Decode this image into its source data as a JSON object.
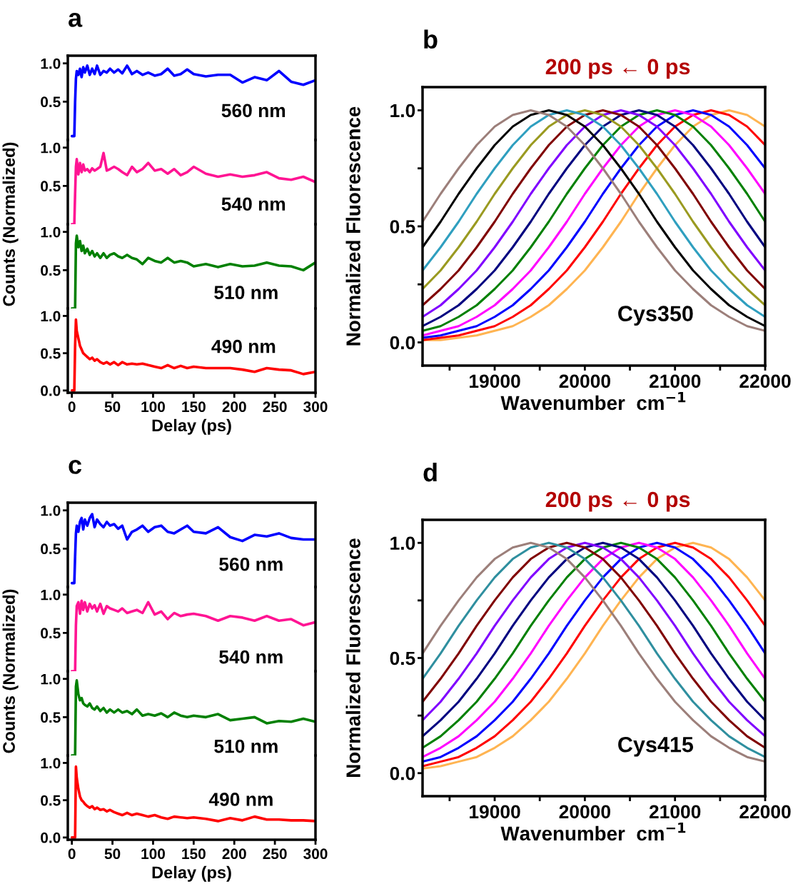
{
  "chart_data": [
    {
      "type": "line",
      "title": "a",
      "x": [
        0,
        3,
        4,
        5,
        6,
        8,
        10,
        12,
        14,
        16,
        19,
        22,
        25,
        28,
        31,
        35,
        39,
        43,
        47,
        52,
        57,
        62,
        68,
        74,
        80,
        87,
        94,
        102,
        110,
        118,
        126,
        134,
        142,
        150,
        165,
        180,
        195,
        210,
        225,
        240,
        255,
        270,
        285,
        300
      ],
      "series": [
        {
          "name": "560 nm",
          "color": "#0000ff",
          "values": [
            0.05,
            0.05,
            0.5,
            0.8,
            0.9,
            0.85,
            0.93,
            0.82,
            0.95,
            0.88,
            0.97,
            0.85,
            0.93,
            0.86,
            0.97,
            0.85,
            0.9,
            0.88,
            0.93,
            0.88,
            0.92,
            0.87,
            0.97,
            0.86,
            0.9,
            0.85,
            0.88,
            0.84,
            0.86,
            0.93,
            0.84,
            0.86,
            0.92,
            0.86,
            0.83,
            0.85,
            0.85,
            0.75,
            0.82,
            0.78,
            0.9,
            0.76,
            0.72,
            0.78
          ]
        }
      ],
      "xlim": [
        -5,
        300
      ],
      "ylim": [
        0,
        1.1
      ],
      "yticks": [
        {
          "value": 0.5,
          "label": "0.5"
        },
        {
          "value": 1,
          "label": "1.0"
        }
      ],
      "tick_labels": "y"
    },
    {
      "type": "line",
      "ylabel": "Counts (Normalized)",
      "x": [
        0,
        3,
        4,
        5,
        6,
        8,
        10,
        12,
        14,
        16,
        19,
        22,
        25,
        28,
        31,
        35,
        39,
        43,
        47,
        52,
        57,
        62,
        68,
        74,
        80,
        87,
        94,
        102,
        110,
        118,
        126,
        134,
        142,
        150,
        165,
        180,
        195,
        210,
        225,
        240,
        255,
        270,
        285,
        300
      ],
      "series": [
        {
          "name": "540 nm",
          "color": "#ff1493",
          "values": [
            0.0,
            0.0,
            0.4,
            0.75,
            0.85,
            0.65,
            0.8,
            0.68,
            0.78,
            0.7,
            0.72,
            0.68,
            0.73,
            0.7,
            0.72,
            0.75,
            0.93,
            0.7,
            0.72,
            0.75,
            0.72,
            0.68,
            0.64,
            0.75,
            0.68,
            0.72,
            0.8,
            0.7,
            0.72,
            0.66,
            0.72,
            0.64,
            0.68,
            0.75,
            0.66,
            0.62,
            0.65,
            0.62,
            0.64,
            0.68,
            0.6,
            0.58,
            0.62,
            0.55
          ]
        }
      ],
      "xlim": [
        -5,
        300
      ],
      "ylim": [
        0,
        1.1
      ],
      "yticks": [
        {
          "value": 0.5,
          "label": "0.5"
        },
        {
          "value": 1,
          "label": "1.0"
        }
      ],
      "tick_labels": "y"
    },
    {
      "type": "line",
      "x": [
        0,
        3,
        4,
        5,
        6,
        8,
        10,
        12,
        14,
        16,
        19,
        22,
        25,
        28,
        31,
        35,
        39,
        43,
        47,
        52,
        57,
        62,
        68,
        74,
        80,
        87,
        94,
        102,
        110,
        118,
        126,
        134,
        142,
        150,
        165,
        180,
        195,
        210,
        225,
        240,
        255,
        270,
        285,
        300
      ],
      "series": [
        {
          "name": "510 nm",
          "color": "#008000",
          "values": [
            0.0,
            0.0,
            0.0,
            0.85,
            0.95,
            0.8,
            0.88,
            0.75,
            0.82,
            0.72,
            0.78,
            0.7,
            0.75,
            0.68,
            0.72,
            0.66,
            0.72,
            0.66,
            0.7,
            0.72,
            0.68,
            0.66,
            0.7,
            0.66,
            0.64,
            0.58,
            0.66,
            0.62,
            0.6,
            0.66,
            0.6,
            0.62,
            0.6,
            0.55,
            0.58,
            0.54,
            0.58,
            0.55,
            0.56,
            0.6,
            0.56,
            0.55,
            0.5,
            0.6
          ]
        }
      ],
      "xlim": [
        -5,
        300
      ],
      "ylim": [
        0,
        1.1
      ],
      "yticks": [
        {
          "value": 0.5,
          "label": "0.5"
        },
        {
          "value": 1,
          "label": "1.0"
        }
      ],
      "tick_labels": "y"
    },
    {
      "type": "line",
      "xlabel": "Delay (ps)",
      "x": [
        0,
        3,
        4,
        5,
        6,
        8,
        10,
        12,
        14,
        16,
        19,
        22,
        25,
        28,
        31,
        35,
        39,
        43,
        47,
        52,
        57,
        62,
        68,
        74,
        80,
        87,
        94,
        102,
        110,
        118,
        126,
        134,
        142,
        150,
        165,
        180,
        195,
        210,
        225,
        240,
        255,
        270,
        285,
        300
      ],
      "series": [
        {
          "name": "490 nm",
          "color": "#ff0000",
          "values": [
            0.0,
            0.0,
            0.6,
            0.95,
            0.8,
            0.7,
            0.6,
            0.55,
            0.5,
            0.48,
            0.45,
            0.42,
            0.44,
            0.4,
            0.42,
            0.38,
            0.36,
            0.38,
            0.35,
            0.38,
            0.34,
            0.38,
            0.35,
            0.36,
            0.35,
            0.36,
            0.34,
            0.32,
            0.3,
            0.34,
            0.3,
            0.33,
            0.3,
            0.32,
            0.3,
            0.3,
            0.3,
            0.28,
            0.25,
            0.3,
            0.28,
            0.27,
            0.22,
            0.25
          ]
        }
      ],
      "xlim": [
        -5,
        300
      ],
      "ylim": [
        -0.03,
        1.1
      ],
      "xticks": [
        0,
        50,
        100,
        150,
        200,
        250,
        300
      ],
      "yticks": [
        {
          "value": 0,
          "label": "0.0"
        },
        {
          "value": 0.5,
          "label": "0.5"
        },
        {
          "value": 1,
          "label": "1.0"
        }
      ]
    },
    {
      "type": "line",
      "title": "b",
      "subtitle": "200 ps ← 0 ps",
      "xlabel": "Wavenumber  cm$^{−1}$",
      "ylabel": "Normalized Fluorescence",
      "annotations": [
        "Cys350"
      ],
      "x": [
        18200,
        18400,
        18600,
        18800,
        19000,
        19200,
        19400,
        19600,
        19800,
        20000,
        20200,
        20400,
        20600,
        20800,
        21000,
        21200,
        21400,
        21600,
        21800,
        22000
      ],
      "series": [
        {
          "color": "#ffb451",
          "values": [
            0.01,
            0.01,
            0.02,
            0.03,
            0.05,
            0.07,
            0.11,
            0.16,
            0.23,
            0.31,
            0.41,
            0.52,
            0.64,
            0.75,
            0.85,
            0.93,
            0.98,
            1.0,
            0.98,
            0.93
          ]
        },
        {
          "color": "#ff0000",
          "values": [
            0.01,
            0.02,
            0.03,
            0.05,
            0.07,
            0.11,
            0.16,
            0.23,
            0.31,
            0.41,
            0.52,
            0.64,
            0.75,
            0.85,
            0.93,
            0.98,
            1.0,
            0.98,
            0.93,
            0.85
          ]
        },
        {
          "color": "#0000ff",
          "values": [
            0.02,
            0.03,
            0.05,
            0.07,
            0.11,
            0.16,
            0.23,
            0.31,
            0.41,
            0.52,
            0.64,
            0.75,
            0.85,
            0.93,
            0.98,
            1.0,
            0.98,
            0.93,
            0.85,
            0.75
          ]
        },
        {
          "color": "#ff00ff",
          "values": [
            0.03,
            0.05,
            0.07,
            0.11,
            0.16,
            0.23,
            0.31,
            0.41,
            0.52,
            0.64,
            0.75,
            0.85,
            0.93,
            0.98,
            1.0,
            0.98,
            0.93,
            0.85,
            0.75,
            0.64
          ]
        },
        {
          "color": "#008000",
          "values": [
            0.05,
            0.07,
            0.11,
            0.16,
            0.23,
            0.31,
            0.41,
            0.52,
            0.64,
            0.75,
            0.85,
            0.93,
            0.98,
            1.0,
            0.98,
            0.93,
            0.85,
            0.75,
            0.64,
            0.52
          ]
        },
        {
          "color": "#000080",
          "values": [
            0.07,
            0.11,
            0.16,
            0.23,
            0.31,
            0.41,
            0.52,
            0.64,
            0.75,
            0.85,
            0.93,
            0.98,
            1.0,
            0.98,
            0.93,
            0.85,
            0.75,
            0.64,
            0.52,
            0.41
          ]
        },
        {
          "color": "#8000ff",
          "values": [
            0.11,
            0.16,
            0.23,
            0.31,
            0.41,
            0.52,
            0.64,
            0.75,
            0.85,
            0.93,
            0.98,
            1.0,
            0.98,
            0.93,
            0.85,
            0.75,
            0.64,
            0.52,
            0.41,
            0.31
          ]
        },
        {
          "color": "#800000",
          "values": [
            0.16,
            0.23,
            0.31,
            0.41,
            0.52,
            0.64,
            0.75,
            0.85,
            0.93,
            0.98,
            1.0,
            0.98,
            0.93,
            0.85,
            0.75,
            0.64,
            0.52,
            0.41,
            0.31,
            0.23
          ]
        },
        {
          "color": "#9a9a20",
          "values": [
            0.23,
            0.31,
            0.41,
            0.52,
            0.64,
            0.75,
            0.85,
            0.93,
            0.98,
            1.0,
            0.98,
            0.93,
            0.85,
            0.75,
            0.64,
            0.52,
            0.41,
            0.31,
            0.23,
            0.16
          ]
        },
        {
          "color": "#2f9fbf",
          "values": [
            0.31,
            0.41,
            0.52,
            0.64,
            0.75,
            0.85,
            0.93,
            0.98,
            1.0,
            0.98,
            0.93,
            0.85,
            0.75,
            0.64,
            0.52,
            0.41,
            0.31,
            0.23,
            0.16,
            0.11
          ]
        },
        {
          "color": "#000000",
          "values": [
            0.41,
            0.52,
            0.64,
            0.75,
            0.85,
            0.93,
            0.98,
            1.0,
            0.98,
            0.93,
            0.85,
            0.75,
            0.64,
            0.52,
            0.41,
            0.31,
            0.23,
            0.16,
            0.11,
            0.07
          ]
        },
        {
          "color": "#9c7f7a",
          "values": [
            0.52,
            0.64,
            0.75,
            0.85,
            0.93,
            0.98,
            1.0,
            0.98,
            0.93,
            0.85,
            0.75,
            0.64,
            0.52,
            0.41,
            0.31,
            0.23,
            0.16,
            0.11,
            0.07,
            0.05
          ]
        }
      ],
      "xlim": [
        18200,
        22000
      ],
      "ylim": [
        -0.1,
        1.1
      ],
      "xticks": [
        {
          "value": 18500,
          "label": null
        },
        19000,
        {
          "value": 19500,
          "label": null
        },
        20000,
        {
          "value": 20500,
          "label": null
        },
        21000,
        {
          "value": 21500,
          "label": null
        },
        22000
      ],
      "yticks": [
        {
          "value": 0,
          "label": "0.0"
        },
        {
          "value": 0.25,
          "label": null
        },
        {
          "value": 0.5,
          "label": "0.5"
        },
        {
          "value": 0.75,
          "label": null
        },
        {
          "value": 1,
          "label": "1.0"
        }
      ]
    },
    {
      "type": "line",
      "title": "c",
      "x": [
        0,
        3,
        4,
        5,
        6,
        8,
        10,
        12,
        14,
        16,
        19,
        22,
        25,
        28,
        31,
        35,
        39,
        43,
        47,
        52,
        57,
        62,
        68,
        74,
        80,
        87,
        94,
        102,
        110,
        118,
        126,
        134,
        142,
        150,
        165,
        180,
        195,
        210,
        225,
        240,
        255,
        270,
        285,
        300
      ],
      "series": [
        {
          "name": "560 nm",
          "color": "#0000ff",
          "values": [
            0.05,
            0.05,
            0.4,
            0.7,
            0.8,
            0.72,
            0.85,
            0.9,
            0.75,
            0.88,
            0.8,
            0.9,
            0.95,
            0.78,
            0.88,
            0.82,
            0.78,
            0.85,
            0.8,
            0.82,
            0.76,
            0.8,
            0.62,
            0.72,
            0.75,
            0.8,
            0.72,
            0.78,
            0.8,
            0.72,
            0.7,
            0.75,
            0.8,
            0.72,
            0.7,
            0.78,
            0.65,
            0.6,
            0.68,
            0.66,
            0.7,
            0.64,
            0.62,
            0.62
          ]
        }
      ],
      "xlim": [
        -5,
        300
      ],
      "ylim": [
        0,
        1.1
      ],
      "yticks": [
        {
          "value": 0.5,
          "label": "0.5"
        },
        {
          "value": 1,
          "label": "1.0"
        }
      ],
      "tick_labels": "y"
    },
    {
      "type": "line",
      "ylabel": "Counts (Normalized)",
      "x": [
        0,
        3,
        4,
        5,
        6,
        8,
        10,
        12,
        14,
        16,
        19,
        22,
        25,
        28,
        31,
        35,
        39,
        43,
        47,
        52,
        57,
        62,
        68,
        74,
        80,
        87,
        94,
        102,
        110,
        118,
        126,
        134,
        142,
        150,
        165,
        180,
        195,
        210,
        225,
        240,
        255,
        270,
        285,
        300
      ],
      "series": [
        {
          "name": "540 nm",
          "color": "#ff1493",
          "values": [
            0.0,
            0.0,
            0.0,
            0.6,
            0.85,
            0.9,
            0.75,
            0.92,
            0.8,
            0.9,
            0.78,
            0.88,
            0.82,
            0.86,
            0.78,
            0.88,
            0.75,
            0.85,
            0.82,
            0.8,
            0.78,
            0.82,
            0.76,
            0.78,
            0.8,
            0.76,
            0.9,
            0.74,
            0.78,
            0.68,
            0.76,
            0.72,
            0.74,
            0.75,
            0.72,
            0.66,
            0.72,
            0.7,
            0.66,
            0.72,
            0.66,
            0.68,
            0.6,
            0.64
          ]
        }
      ],
      "xlim": [
        -5,
        300
      ],
      "ylim": [
        0,
        1.1
      ],
      "yticks": [
        {
          "value": 0.5,
          "label": "0.5"
        },
        {
          "value": 1,
          "label": "1.0"
        }
      ],
      "tick_labels": "y"
    },
    {
      "type": "line",
      "x": [
        0,
        3,
        4,
        5,
        6,
        8,
        10,
        12,
        14,
        16,
        19,
        22,
        25,
        28,
        31,
        35,
        39,
        43,
        47,
        52,
        57,
        62,
        68,
        74,
        80,
        87,
        94,
        102,
        110,
        118,
        126,
        134,
        142,
        150,
        165,
        180,
        195,
        210,
        225,
        240,
        255,
        270,
        285,
        300
      ],
      "series": [
        {
          "name": "510 nm",
          "color": "#008000",
          "values": [
            0.0,
            0.0,
            0.0,
            0.9,
            0.98,
            0.8,
            0.72,
            0.75,
            0.68,
            0.66,
            0.64,
            0.68,
            0.62,
            0.6,
            0.64,
            0.58,
            0.62,
            0.56,
            0.6,
            0.56,
            0.6,
            0.56,
            0.58,
            0.54,
            0.6,
            0.52,
            0.54,
            0.52,
            0.55,
            0.5,
            0.56,
            0.52,
            0.5,
            0.52,
            0.5,
            0.54,
            0.46,
            0.48,
            0.5,
            0.42,
            0.45,
            0.44,
            0.48,
            0.44
          ]
        }
      ],
      "xlim": [
        -5,
        300
      ],
      "ylim": [
        0,
        1.1
      ],
      "yticks": [
        {
          "value": 0.5,
          "label": "0.5"
        },
        {
          "value": 1,
          "label": "1.0"
        }
      ],
      "tick_labels": "y"
    },
    {
      "type": "line",
      "xlabel": "Delay (ps)",
      "x": [
        0,
        3,
        4,
        5,
        6,
        8,
        10,
        12,
        14,
        16,
        19,
        22,
        25,
        28,
        31,
        35,
        39,
        43,
        47,
        52,
        57,
        62,
        68,
        74,
        80,
        87,
        94,
        102,
        110,
        118,
        126,
        134,
        142,
        150,
        165,
        180,
        195,
        210,
        225,
        240,
        255,
        270,
        285,
        300
      ],
      "series": [
        {
          "name": "490 nm",
          "color": "#ff0000",
          "values": [
            0.0,
            0.0,
            0.0,
            0.95,
            0.8,
            0.65,
            0.55,
            0.5,
            0.48,
            0.45,
            0.42,
            0.4,
            0.42,
            0.38,
            0.4,
            0.37,
            0.38,
            0.35,
            0.37,
            0.34,
            0.32,
            0.3,
            0.33,
            0.3,
            0.32,
            0.3,
            0.28,
            0.3,
            0.27,
            0.25,
            0.28,
            0.27,
            0.26,
            0.27,
            0.25,
            0.22,
            0.26,
            0.23,
            0.28,
            0.24,
            0.24,
            0.23,
            0.23,
            0.22
          ]
        }
      ],
      "xlim": [
        -5,
        300
      ],
      "ylim": [
        -0.03,
        1.1
      ],
      "xticks": [
        0,
        50,
        100,
        150,
        200,
        250,
        300
      ],
      "yticks": [
        {
          "value": 0,
          "label": "0.0"
        },
        {
          "value": 0.5,
          "label": "0.5"
        },
        {
          "value": 1,
          "label": "1.0"
        }
      ]
    },
    {
      "type": "line",
      "title": "d",
      "subtitle": "200 ps ← 0 ps",
      "xlabel": "Wavenumber  cm$^{−1}$",
      "ylabel": "Normalized Fluorescence",
      "annotations": [
        "Cys415"
      ],
      "x": [
        18200,
        18400,
        18600,
        18800,
        19000,
        19200,
        19400,
        19600,
        19800,
        20000,
        20200,
        20400,
        20600,
        20800,
        21000,
        21200,
        21400,
        21600,
        21800,
        22000
      ],
      "series": [
        {
          "color": "#ffb451",
          "values": [
            0.02,
            0.03,
            0.05,
            0.07,
            0.11,
            0.16,
            0.23,
            0.31,
            0.41,
            0.52,
            0.64,
            0.75,
            0.85,
            0.93,
            0.98,
            1.0,
            0.98,
            0.93,
            0.85,
            0.75
          ]
        },
        {
          "color": "#ff0000",
          "values": [
            0.03,
            0.05,
            0.07,
            0.11,
            0.16,
            0.23,
            0.31,
            0.41,
            0.52,
            0.64,
            0.75,
            0.85,
            0.93,
            0.98,
            1.0,
            0.98,
            0.93,
            0.85,
            0.75,
            0.64
          ]
        },
        {
          "color": "#0000ff",
          "values": [
            0.05,
            0.07,
            0.11,
            0.16,
            0.23,
            0.31,
            0.41,
            0.52,
            0.64,
            0.75,
            0.85,
            0.93,
            0.98,
            1.0,
            0.98,
            0.93,
            0.85,
            0.75,
            0.64,
            0.52
          ]
        },
        {
          "color": "#ff00ff",
          "values": [
            0.07,
            0.11,
            0.16,
            0.23,
            0.31,
            0.41,
            0.52,
            0.64,
            0.75,
            0.85,
            0.93,
            0.98,
            1.0,
            0.98,
            0.93,
            0.85,
            0.75,
            0.64,
            0.52,
            0.41
          ]
        },
        {
          "color": "#008000",
          "values": [
            0.11,
            0.16,
            0.23,
            0.31,
            0.41,
            0.52,
            0.64,
            0.75,
            0.85,
            0.93,
            0.98,
            1.0,
            0.98,
            0.93,
            0.85,
            0.75,
            0.64,
            0.52,
            0.41,
            0.31
          ]
        },
        {
          "color": "#000080",
          "values": [
            0.16,
            0.23,
            0.31,
            0.41,
            0.52,
            0.64,
            0.75,
            0.85,
            0.93,
            0.98,
            1.0,
            0.98,
            0.93,
            0.85,
            0.75,
            0.64,
            0.52,
            0.41,
            0.31,
            0.23
          ]
        },
        {
          "color": "#8000ff",
          "values": [
            0.23,
            0.31,
            0.41,
            0.52,
            0.64,
            0.75,
            0.85,
            0.93,
            0.98,
            1.0,
            0.98,
            0.93,
            0.85,
            0.75,
            0.64,
            0.52,
            0.41,
            0.31,
            0.23,
            0.16
          ]
        },
        {
          "color": "#800000",
          "values": [
            0.31,
            0.41,
            0.52,
            0.64,
            0.75,
            0.85,
            0.93,
            0.98,
            1.0,
            0.98,
            0.93,
            0.85,
            0.75,
            0.64,
            0.52,
            0.41,
            0.31,
            0.23,
            0.16,
            0.11
          ]
        },
        {
          "color": "#2f8f9f",
          "values": [
            0.41,
            0.52,
            0.64,
            0.75,
            0.85,
            0.93,
            0.98,
            1.0,
            0.98,
            0.93,
            0.85,
            0.75,
            0.64,
            0.52,
            0.41,
            0.31,
            0.23,
            0.16,
            0.11,
            0.07
          ]
        },
        {
          "color": "#9c7f7a",
          "values": [
            0.52,
            0.64,
            0.75,
            0.85,
            0.93,
            0.98,
            1.0,
            0.98,
            0.93,
            0.85,
            0.75,
            0.64,
            0.52,
            0.41,
            0.31,
            0.23,
            0.16,
            0.11,
            0.07,
            0.05
          ]
        }
      ],
      "xlim": [
        18200,
        22000
      ],
      "ylim": [
        -0.1,
        1.1
      ],
      "xticks": [
        {
          "value": 18500,
          "label": null
        },
        19000,
        {
          "value": 19500,
          "label": null
        },
        20000,
        {
          "value": 20500,
          "label": null
        },
        21000,
        {
          "value": 21500,
          "label": null
        },
        22000
      ],
      "yticks": [
        {
          "value": 0,
          "label": "0.0"
        },
        {
          "value": 0.25,
          "label": null
        },
        {
          "value": 0.5,
          "label": "0.5"
        },
        {
          "value": 0.75,
          "label": null
        },
        {
          "value": 1,
          "label": "1.0"
        }
      ]
    }
  ]
}
